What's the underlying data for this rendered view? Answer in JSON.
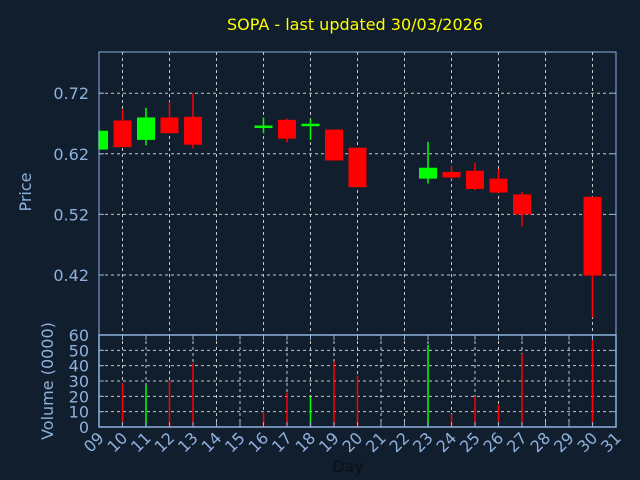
{
  "chart_data": [
    {
      "type": "candlestick",
      "title": "SOPA - last updated 30/03/2026",
      "ylabel": "Price",
      "xlabel": "Day",
      "ylim": [
        0.321,
        0.788
      ],
      "yticks": [
        "0.72",
        "0.62",
        "0.52",
        "0.42"
      ],
      "ytick_values": [
        0.72,
        0.62,
        0.52,
        0.42
      ],
      "xlim": [
        9,
        31
      ],
      "xticks": [
        "09",
        "10",
        "11",
        "12",
        "13",
        "14",
        "15",
        "16",
        "17",
        "18",
        "19",
        "20",
        "21",
        "22",
        "23",
        "24",
        "25",
        "26",
        "27",
        "28",
        "29",
        "30",
        "31"
      ],
      "grid": true,
      "candles": [
        {
          "day": 9,
          "open": 0.627,
          "high": 0.658,
          "low": 0.627,
          "close": 0.658
        },
        {
          "day": 10,
          "open": 0.675,
          "high": 0.693,
          "low": 0.631,
          "close": 0.631
        },
        {
          "day": 11,
          "open": 0.643,
          "high": 0.696,
          "low": 0.634,
          "close": 0.68
        },
        {
          "day": 12,
          "open": 0.68,
          "high": 0.706,
          "low": 0.654,
          "close": 0.654
        },
        {
          "day": 13,
          "open": 0.681,
          "high": 0.72,
          "low": 0.629,
          "close": 0.635
        },
        {
          "day": 16,
          "open": 0.665,
          "high": 0.68,
          "low": 0.654,
          "close": 0.665
        },
        {
          "day": 17,
          "open": 0.676,
          "high": 0.678,
          "low": 0.639,
          "close": 0.645
        },
        {
          "day": 18,
          "open": 0.668,
          "high": 0.677,
          "low": 0.643,
          "close": 0.668
        },
        {
          "day": 19,
          "open": 0.66,
          "high": 0.66,
          "low": 0.609,
          "close": 0.609
        },
        {
          "day": 20,
          "open": 0.63,
          "high": 0.63,
          "low": 0.565,
          "close": 0.565
        },
        {
          "day": 23,
          "open": 0.579,
          "high": 0.64,
          "low": 0.571,
          "close": 0.597
        },
        {
          "day": 24,
          "open": 0.59,
          "high": 0.6,
          "low": 0.578,
          "close": 0.581
        },
        {
          "day": 25,
          "open": 0.592,
          "high": 0.605,
          "low": 0.56,
          "close": 0.562
        },
        {
          "day": 26,
          "open": 0.579,
          "high": 0.595,
          "low": 0.556,
          "close": 0.556
        },
        {
          "day": 27,
          "open": 0.553,
          "high": 0.557,
          "low": 0.5,
          "close": 0.52
        },
        {
          "day": 30,
          "open": 0.549,
          "high": 0.549,
          "low": 0.35,
          "close": 0.419
        }
      ]
    },
    {
      "type": "bar",
      "ylabel": "Volume (0000)",
      "ylim": [
        0,
        60
      ],
      "yticks": [
        "0",
        "10",
        "20",
        "30",
        "40",
        "50",
        "60"
      ],
      "ytick_values": [
        0,
        10,
        20,
        30,
        40,
        50,
        60
      ],
      "bars": [
        {
          "day": 10,
          "value": 28.6,
          "up": false
        },
        {
          "day": 11,
          "value": 27.4,
          "up": true
        },
        {
          "day": 12,
          "value": 30.7,
          "up": false
        },
        {
          "day": 13,
          "value": 41.6,
          "up": false
        },
        {
          "day": 16,
          "value": 10.0,
          "up": false
        },
        {
          "day": 17,
          "value": 22.4,
          "up": false
        },
        {
          "day": 18,
          "value": 19.8,
          "up": true
        },
        {
          "day": 19,
          "value": 42.7,
          "up": false
        },
        {
          "day": 20,
          "value": 33.5,
          "up": false
        },
        {
          "day": 23,
          "value": 53.6,
          "up": true
        },
        {
          "day": 24,
          "value": 8.5,
          "up": false
        },
        {
          "day": 25,
          "value": 19.8,
          "up": false
        },
        {
          "day": 26,
          "value": 14.4,
          "up": false
        },
        {
          "day": 27,
          "value": 47.7,
          "up": false
        },
        {
          "day": 30,
          "value": 58.0,
          "up": false
        }
      ]
    }
  ],
  "colors": {
    "up": "#00ff00",
    "down": "#ff0000",
    "title": "#ffff00",
    "axis": "#8fb1dc",
    "grid": "#c8c8c8",
    "background": "#111e2e"
  }
}
